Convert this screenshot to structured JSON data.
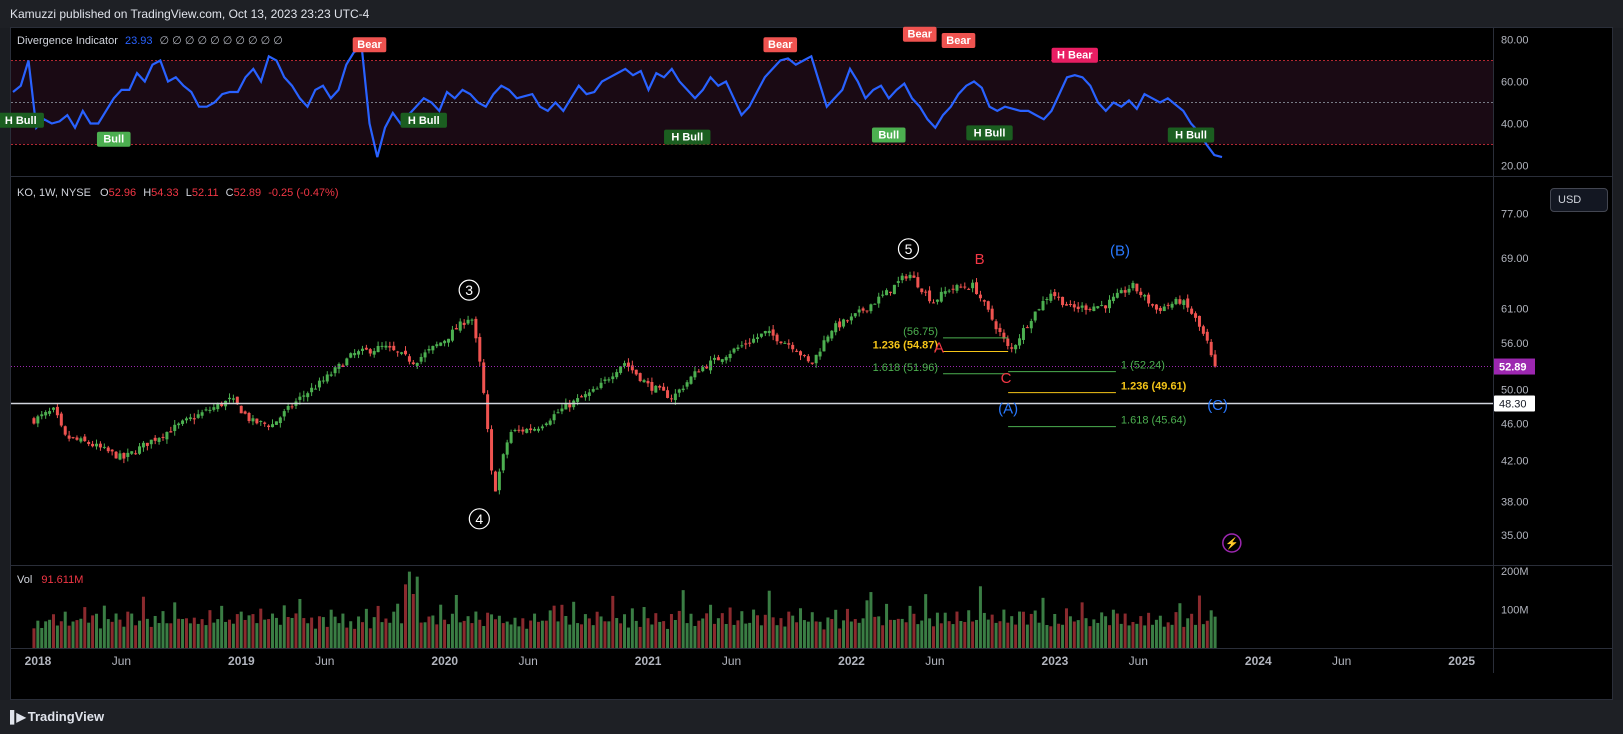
{
  "header": {
    "published": "Kamuzzi published on TradingView.com, Oct 13, 2023 23:23 UTC-4"
  },
  "footer": {
    "brand": "TradingView",
    "brand_icon": "tradingview-logo-icon"
  },
  "colors": {
    "up": "#4caf50",
    "down": "#ef5350",
    "rsi_line": "#2962ff",
    "wave_white": "#ffffff",
    "wave_red": "#f23645",
    "wave_blue": "#2979ff",
    "fib_green": "#4caf50",
    "fib_yellow": "#f5c518",
    "price_tag": "#9c27b0"
  },
  "indicator": {
    "name": "Divergence Indicator",
    "value": "23.93",
    "extra": "∅ ∅ ∅ ∅ ∅ ∅ ∅ ∅ ∅ ∅"
  },
  "main_legend": {
    "symbol": "KO, 1W, NYSE",
    "o_label": "O",
    "o": "52.96",
    "h_label": "H",
    "h": "54.33",
    "l_label": "L",
    "l": "52.11",
    "c_label": "C",
    "c": "52.89",
    "change": "-0.25 (-0.47%)"
  },
  "volume_legend": {
    "label": "Vol",
    "value": "91.611M"
  },
  "currency_button": "USD",
  "price_tags": {
    "last": "52.89",
    "line": "48.30"
  },
  "chart_data": [
    {
      "type": "line",
      "name": "indicator-pane",
      "ylim": [
        15,
        85
      ],
      "yticks": [
        "80.00",
        "60.00",
        "40.00",
        "20.00"
      ],
      "levels": [
        70,
        50,
        30
      ],
      "series": [
        {
          "values": [
            55,
            58,
            70,
            38,
            42,
            40,
            41,
            44,
            38,
            46,
            40,
            40,
            46,
            52,
            56,
            56,
            64,
            60,
            68,
            70,
            60,
            62,
            58,
            55,
            48,
            48,
            50,
            54,
            55,
            55,
            62,
            66,
            60,
            72,
            70,
            62,
            58,
            52,
            48,
            56,
            58,
            52,
            56,
            68,
            74,
            76,
            40,
            24,
            38,
            45,
            40,
            44,
            48,
            52,
            50,
            46,
            55,
            52,
            56,
            54,
            50,
            48,
            54,
            58,
            56,
            52,
            53,
            54,
            48,
            46,
            50,
            46,
            52,
            58,
            54,
            55,
            60,
            62,
            64,
            66,
            63,
            65,
            56,
            64,
            62,
            66,
            60,
            56,
            52,
            56,
            62,
            58,
            60,
            52,
            44,
            48,
            55,
            62,
            66,
            70,
            71,
            68,
            70,
            72,
            60,
            48,
            52,
            56,
            66,
            60,
            52,
            56,
            58,
            52,
            56,
            59,
            52,
            48,
            42,
            38,
            44,
            48,
            54,
            58,
            60,
            57,
            48,
            46,
            48,
            47,
            46,
            46,
            44,
            42,
            46,
            54,
            62,
            63,
            62,
            58,
            50,
            46,
            50,
            48,
            51,
            47,
            54,
            52,
            50,
            52,
            49,
            46,
            40,
            36,
            30,
            25,
            24
          ]
        }
      ],
      "signals": [
        {
          "label": "H Bull",
          "kind": "bull_hidden",
          "index": 1,
          "value": 47
        },
        {
          "label": "Bull",
          "kind": "bull",
          "index": 13,
          "value": 38
        },
        {
          "label": "Bear",
          "kind": "bear",
          "index": 46,
          "value": 73
        },
        {
          "label": "H Bull",
          "kind": "bull_hidden",
          "index": 53,
          "value": 47
        },
        {
          "label": "H Bull",
          "kind": "bull_hidden",
          "index": 87,
          "value": 39
        },
        {
          "label": "Bear",
          "kind": "bear",
          "index": 99,
          "value": 73
        },
        {
          "label": "Bull",
          "kind": "bull",
          "index": 113,
          "value": 40
        },
        {
          "label": "Bear",
          "kind": "bear",
          "index": 117,
          "value": 78
        },
        {
          "label": "Bear",
          "kind": "bear",
          "index": 122,
          "value": 75
        },
        {
          "label": "H Bull",
          "kind": "bull_hidden",
          "index": 126,
          "value": 41
        },
        {
          "label": "H Bear",
          "kind": "bear_hidden",
          "index": 137,
          "value": 68
        },
        {
          "label": "H Bull",
          "kind": "bull_hidden",
          "index": 152,
          "value": 40
        }
      ]
    },
    {
      "type": "candlestick",
      "name": "KO weekly price",
      "yscale": "log",
      "ylim": [
        32.5,
        84
      ],
      "yticks": [
        "77.00",
        "69.00",
        "61.00",
        "56.00",
        "50.00",
        "46.00",
        "42.00",
        "38.00",
        "35.00"
      ],
      "xlabels": [
        "2018",
        "Jun",
        "2019",
        "Jun",
        "2020",
        "Jun",
        "2021",
        "Jun",
        "2022",
        "Jun",
        "2023",
        "Jun",
        "2024",
        "Jun",
        "2025"
      ],
      "x_range": [
        2018,
        2025.1
      ],
      "close_anchors": [
        [
          2017.98,
          46.4
        ],
        [
          2018.08,
          47.5
        ],
        [
          2018.13,
          44.5
        ],
        [
          2018.25,
          43.8
        ],
        [
          2018.42,
          42.2
        ],
        [
          2018.55,
          44
        ],
        [
          2018.75,
          46.5
        ],
        [
          2018.95,
          48.8
        ],
        [
          2019.05,
          46.2
        ],
        [
          2019.15,
          45.8
        ],
        [
          2019.3,
          49.2
        ],
        [
          2019.4,
          51
        ],
        [
          2019.55,
          54.5
        ],
        [
          2019.7,
          55.5
        ],
        [
          2019.85,
          53.5
        ],
        [
          2020.0,
          56.5
        ],
        [
          2020.13,
          60
        ],
        [
          2020.18,
          52
        ],
        [
          2020.24,
          38.5
        ],
        [
          2020.32,
          45
        ],
        [
          2020.45,
          45.5
        ],
        [
          2020.6,
          48
        ],
        [
          2020.75,
          50
        ],
        [
          2020.88,
          53.5
        ],
        [
          2021.0,
          50.5
        ],
        [
          2021.12,
          49
        ],
        [
          2021.25,
          52.5
        ],
        [
          2021.45,
          55.5
        ],
        [
          2021.58,
          57.5
        ],
        [
          2021.72,
          55.5
        ],
        [
          2021.8,
          53
        ],
        [
          2021.9,
          58
        ],
        [
          2022.0,
          59.5
        ],
        [
          2022.18,
          63.5
        ],
        [
          2022.28,
          66.5
        ],
        [
          2022.4,
          62
        ],
        [
          2022.48,
          64
        ],
        [
          2022.6,
          64.5
        ],
        [
          2022.68,
          60
        ],
        [
          2022.78,
          54.8
        ],
        [
          2022.88,
          59.5
        ],
        [
          2022.98,
          63.5
        ],
        [
          2023.08,
          61
        ],
        [
          2023.25,
          61.5
        ],
        [
          2023.38,
          64.5
        ],
        [
          2023.5,
          60.8
        ],
        [
          2023.62,
          62.2
        ],
        [
          2023.68,
          60
        ],
        [
          2023.75,
          56
        ],
        [
          2023.78,
          52.9
        ]
      ],
      "last_close": 52.89,
      "horizontal_line": 48.3,
      "wave_labels": [
        {
          "text": "3",
          "x": 2020.12,
          "y": 63.8,
          "style": "circle",
          "color": "white"
        },
        {
          "text": "4",
          "x": 2020.17,
          "y": 36.4,
          "style": "circle",
          "color": "white"
        },
        {
          "text": "5",
          "x": 2022.28,
          "y": 70.6,
          "style": "circle",
          "color": "white"
        },
        {
          "text": "A",
          "x": 2022.43,
          "y": 55.4,
          "style": "plain",
          "color": "red"
        },
        {
          "text": "B",
          "x": 2022.63,
          "y": 68.9,
          "style": "plain",
          "color": "red"
        },
        {
          "text": "C",
          "x": 2022.76,
          "y": 51.4,
          "style": "plain",
          "color": "red"
        },
        {
          "text": "(A)",
          "x": 2022.77,
          "y": 47.7,
          "style": "plain",
          "color": "blue"
        },
        {
          "text": "(B)",
          "x": 2023.32,
          "y": 70.3,
          "style": "plain",
          "color": "blue"
        },
        {
          "text": "(C)",
          "x": 2023.8,
          "y": 48.1,
          "style": "plain",
          "color": "blue"
        }
      ],
      "fib_levels": [
        {
          "group": 1,
          "ratio": "1",
          "value": 56.75,
          "label": "(56.75)",
          "color": "green",
          "x_from": 2022.45,
          "x_to": 2022.77
        },
        {
          "group": 1,
          "ratio": "1.236",
          "value": 54.87,
          "label": "1.236 (54.87)",
          "color": "yellow",
          "x_from": 2022.45,
          "x_to": 2022.77
        },
        {
          "group": 1,
          "ratio": "1.618",
          "value": 51.96,
          "label": "1.618 (51.96)",
          "color": "green",
          "x_from": 2022.45,
          "x_to": 2022.77
        },
        {
          "group": 2,
          "ratio": "1",
          "value": 52.24,
          "label": "1 (52.24)",
          "color": "green",
          "x_from": 2022.77,
          "x_to": 2023.3
        },
        {
          "group": 2,
          "ratio": "1.236",
          "value": 49.61,
          "label": "1.236 (49.61)",
          "color": "yellow",
          "x_from": 2022.77,
          "x_to": 2023.3
        },
        {
          "group": 2,
          "ratio": "1.618",
          "value": 45.64,
          "label": "1.618 (45.64)",
          "color": "green",
          "x_from": 2022.77,
          "x_to": 2023.3
        }
      ],
      "marker_icon": "lightning-icon"
    },
    {
      "type": "bar",
      "name": "volume",
      "yticks": [
        "200M",
        "100M"
      ],
      "ylim": [
        0,
        210
      ],
      "values_millions_pattern": [
        60,
        72,
        55,
        80,
        66,
        90,
        58,
        70,
        95,
        62,
        75,
        68,
        85,
        110,
        64,
        77,
        92,
        58,
        120,
        70,
        66,
        88,
        74,
        60,
        100,
        82,
        69,
        78,
        130,
        71,
        64,
        86,
        58,
        95,
        73,
        62,
        104,
        80,
        67,
        90
      ],
      "spike_index_values": {
        "95": 165,
        "96": 198,
        "97": 140,
        "98": 185,
        "135": 112,
        "166": 150,
        "178": 105,
        "214": 145,
        "242": 160,
        "303": 103
      }
    }
  ]
}
